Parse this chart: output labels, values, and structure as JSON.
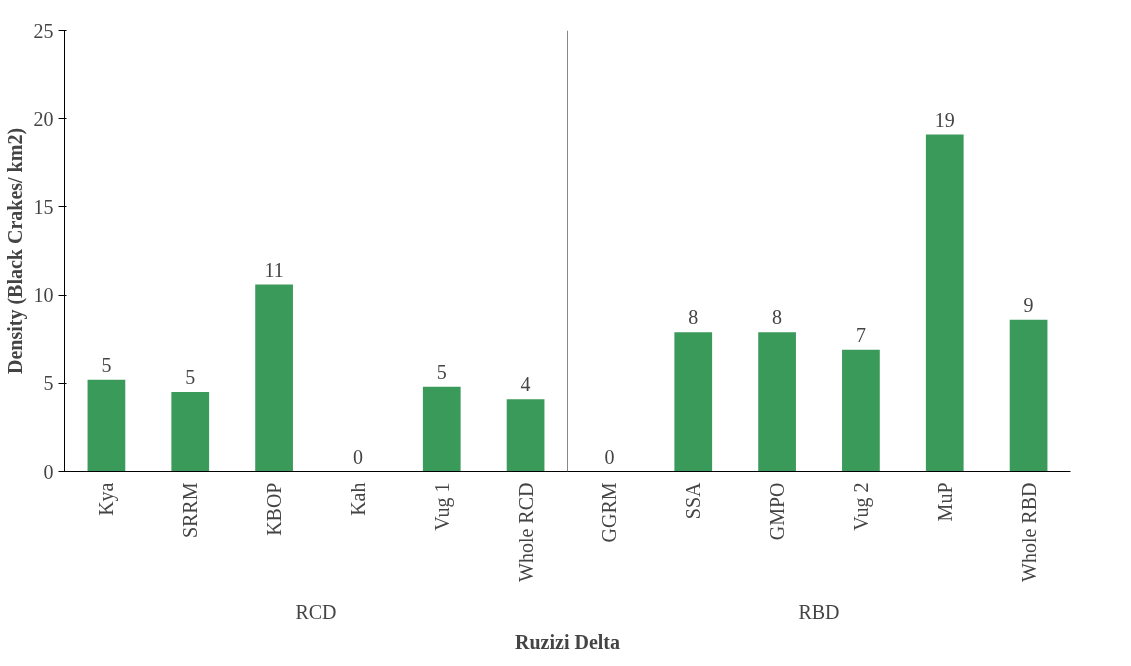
{
  "chart_data": {
    "type": "bar",
    "categories": [
      "Kya",
      "SRRM",
      "KBOP",
      "Kah",
      "Vug 1",
      "Whole RCD",
      "GGRM",
      "SSA",
      "GMPO",
      "Vug 2",
      "MuP",
      "Whole RBD"
    ],
    "values": [
      5.2,
      4.5,
      10.6,
      0,
      4.8,
      4.1,
      0,
      7.9,
      7.9,
      6.9,
      19.1,
      8.6
    ],
    "value_labels": [
      "5",
      "5",
      "11",
      "0",
      "5",
      "4",
      "0",
      "8",
      "8",
      "7",
      "19",
      "9"
    ],
    "color": "#3a9a5a",
    "ylim": [
      0,
      25
    ],
    "yticks": [
      0,
      5,
      10,
      15,
      20,
      25
    ],
    "ylabel": "Density (Black Crakes/ km2)",
    "xlabel": "Ruzizi Delta",
    "annotations": [
      "RCD",
      "RBD"
    ],
    "grid": false
  }
}
